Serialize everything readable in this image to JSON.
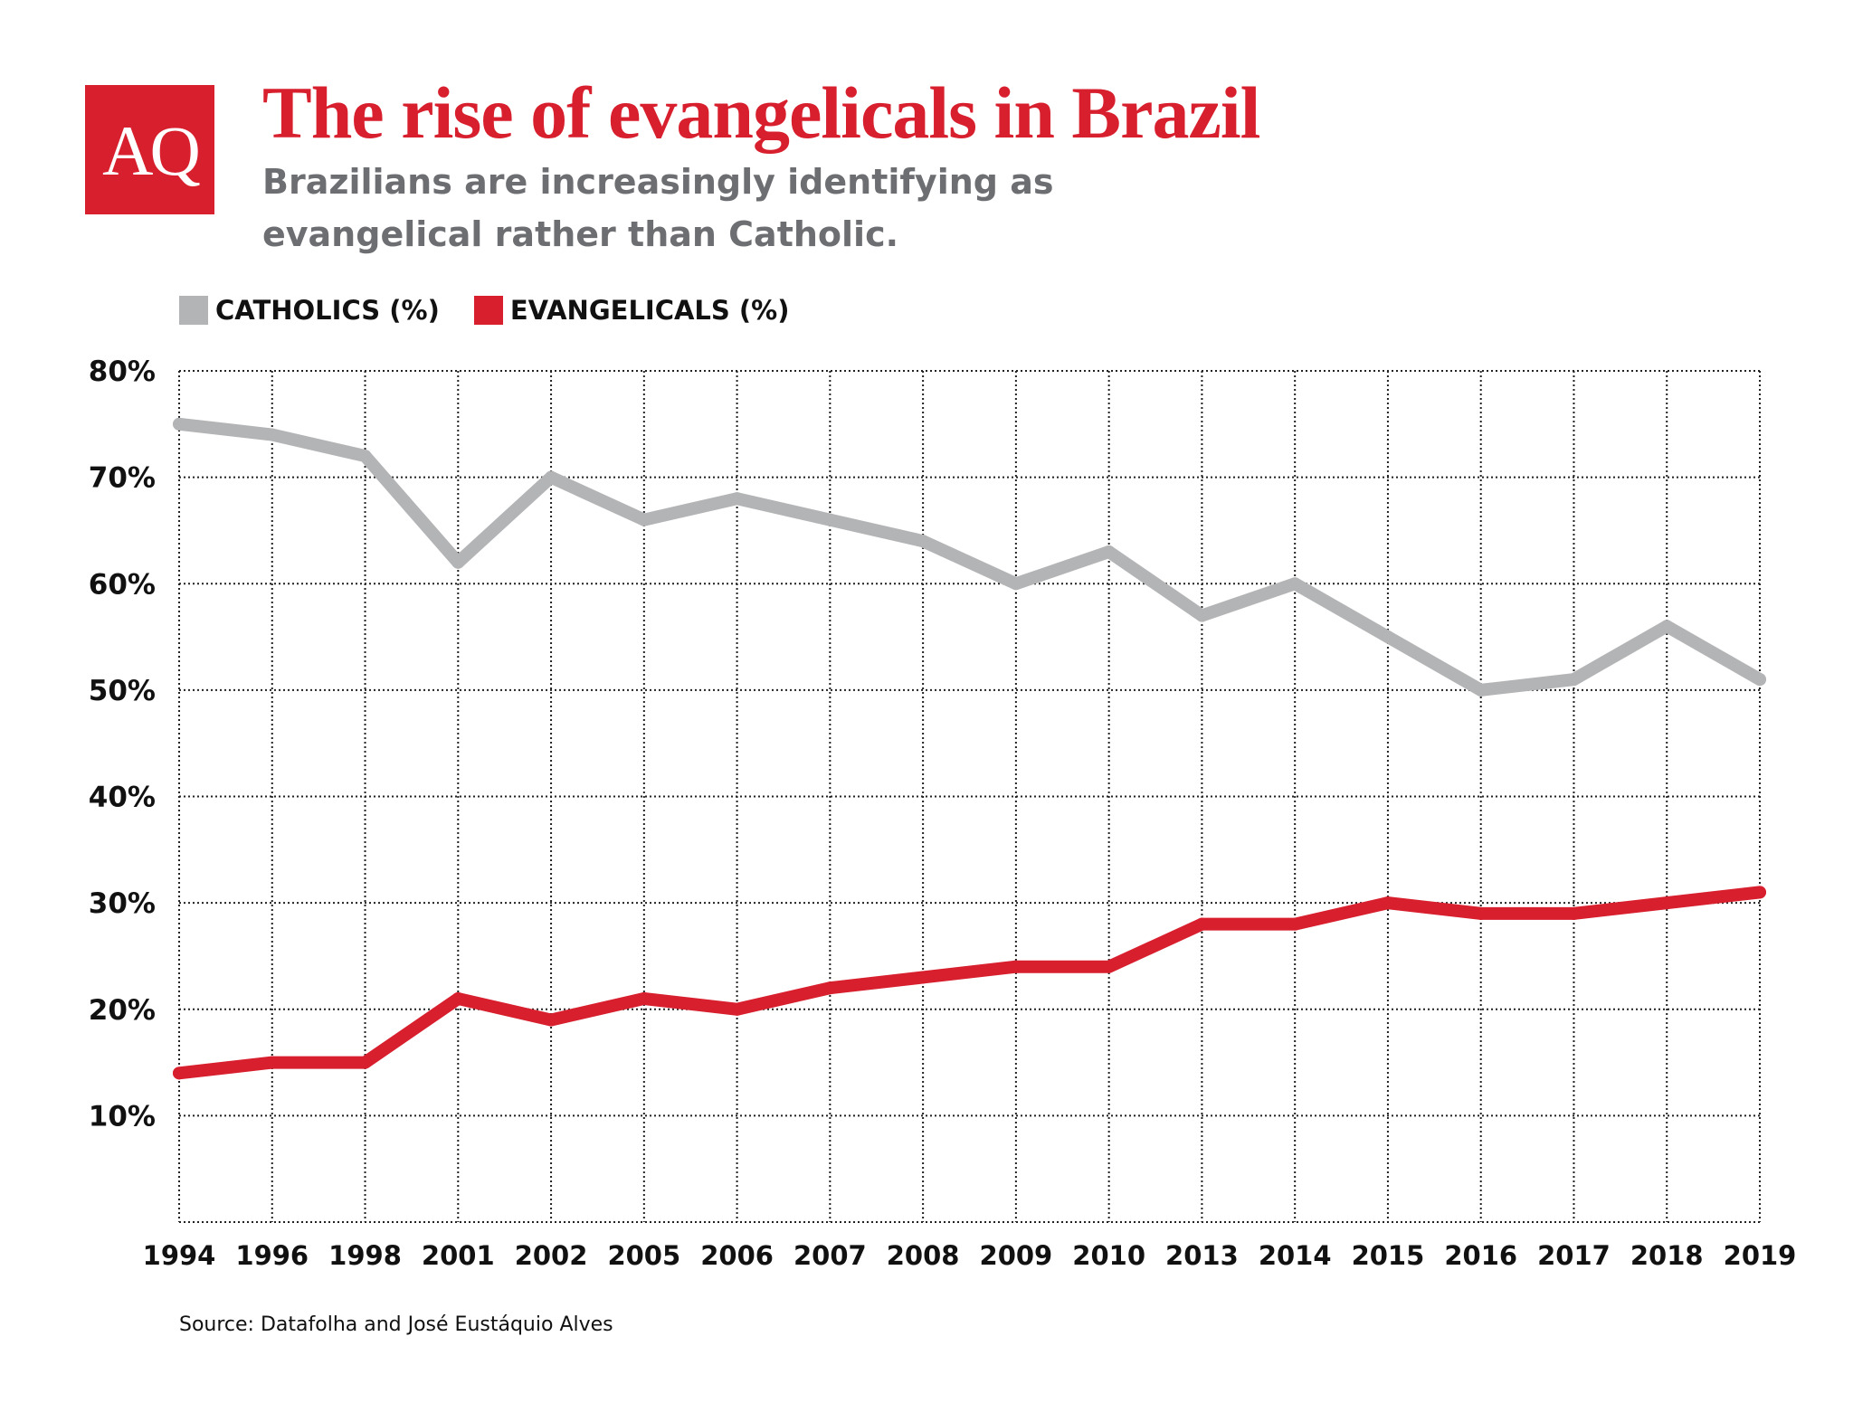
{
  "logo_text": "AQ",
  "title": "The rise of evangelicals in Brazil",
  "subtitle": "Brazilians are increasingly identifying as evangelical rather than Catholic.",
  "source": "Source: Datafolha and José Eustáquio Alves",
  "colors": {
    "catholics": "#b3b4b6",
    "evangelicals": "#d81f2e",
    "brand": "#d81f2e"
  },
  "chart_data": {
    "type": "line",
    "categories": [
      "1994",
      "1996",
      "1998",
      "2001",
      "2002",
      "2005",
      "2006",
      "2007",
      "2008",
      "2009",
      "2010",
      "2013",
      "2014",
      "2015",
      "2016",
      "2017",
      "2018",
      "2019"
    ],
    "series": [
      {
        "name": "CATHOLICS (%)",
        "values": [
          75,
          74,
          72,
          62,
          70,
          66,
          68,
          66,
          64,
          60,
          63,
          57,
          60,
          55,
          50,
          51,
          56,
          51
        ]
      },
      {
        "name": "EVANGELICALS (%)",
        "values": [
          14,
          15,
          15,
          21,
          19,
          21,
          20,
          22,
          23,
          24,
          24,
          28,
          28,
          30,
          29,
          29,
          30,
          31
        ]
      }
    ],
    "yticks": [
      "10%",
      "20%",
      "30%",
      "40%",
      "50%",
      "60%",
      "70%",
      "80%"
    ],
    "ylim": [
      0,
      80
    ],
    "grid": true,
    "legend": "top-left"
  }
}
